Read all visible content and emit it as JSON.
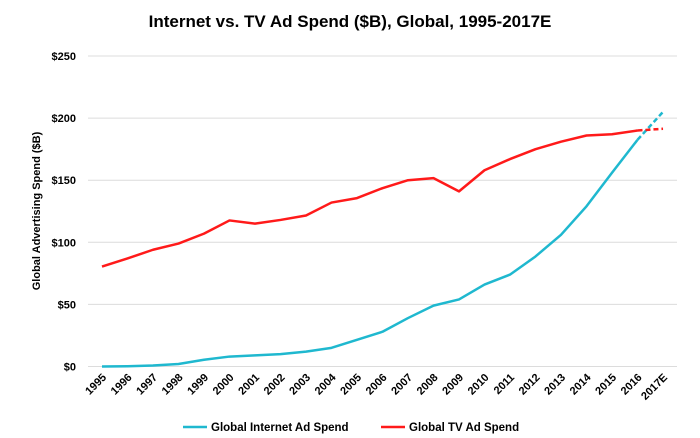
{
  "chart_data": {
    "type": "line",
    "title": "Internet vs. TV Ad Spend ($B), Global, 1995-2017E",
    "xlabel": "",
    "ylabel": "Global Advertising Spend ($B)",
    "ylim": [
      0,
      250
    ],
    "yticks": [
      "$0",
      "$50",
      "$100",
      "$150",
      "$200",
      "$250"
    ],
    "ytick_values": [
      0,
      50,
      100,
      150,
      200,
      250
    ],
    "grid": true,
    "legend": "bottom",
    "categories": [
      "1995",
      "1996",
      "1997",
      "1998",
      "1999",
      "2000",
      "2001",
      "2002",
      "2003",
      "2004",
      "2005",
      "2006",
      "2007",
      "2008",
      "2009",
      "2010",
      "2011",
      "2012",
      "2013",
      "2014",
      "2015",
      "2016",
      "2017E"
    ],
    "projected_from_index": 21,
    "series": [
      {
        "name": "Global Internet Ad Spend",
        "color": "#1fb8cf",
        "values": [
          0,
          0.2,
          0.8,
          2,
          5.4,
          8,
          9,
          10,
          12,
          15,
          21.5,
          28,
          39,
          49,
          54,
          66,
          74,
          88.6,
          106,
          129,
          156,
          182.5,
          205
        ]
      },
      {
        "name": "Global TV Ad Spend",
        "color": "#ff1a1a",
        "values": [
          80.5,
          87,
          94,
          99,
          107,
          117.6,
          115,
          118,
          121.6,
          132,
          135.6,
          143.6,
          150,
          151.7,
          141,
          158,
          167,
          175,
          181,
          186,
          187,
          190,
          191.4
        ]
      }
    ]
  }
}
